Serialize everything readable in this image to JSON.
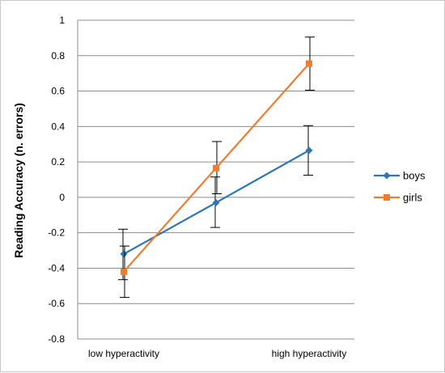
{
  "chart_data": {
    "type": "line",
    "title": "",
    "xlabel": "",
    "ylabel": "Reading Accuracy  (n. errors)",
    "ylim": [
      -0.8,
      1
    ],
    "yticks": [
      "1",
      "0.8",
      "0.6",
      "0.4",
      "0.2",
      "0",
      "-0.2",
      "-0.4",
      "-0.6",
      "-0.8"
    ],
    "ytick_values": [
      1,
      0.8,
      0.6,
      0.4,
      0.2,
      0,
      -0.2,
      -0.4,
      -0.6,
      -0.8
    ],
    "categories": [
      "low hyperactivity",
      "",
      "high hyperactivity"
    ],
    "grid": true,
    "legend_position": "right",
    "series": [
      {
        "name": "boys",
        "color": "#2e75b6",
        "marker": "diamond",
        "values": [
          -0.32,
          -0.03,
          0.265
        ],
        "error_low": [
          -0.465,
          -0.17,
          0.125
        ],
        "error_high": [
          -0.18,
          0.115,
          0.405
        ]
      },
      {
        "name": "girls",
        "color": "#ed7d31",
        "marker": "square",
        "values": [
          -0.42,
          0.165,
          0.755
        ],
        "error_low": [
          -0.565,
          0.02,
          0.605
        ],
        "error_high": [
          -0.275,
          0.315,
          0.905
        ]
      }
    ]
  }
}
